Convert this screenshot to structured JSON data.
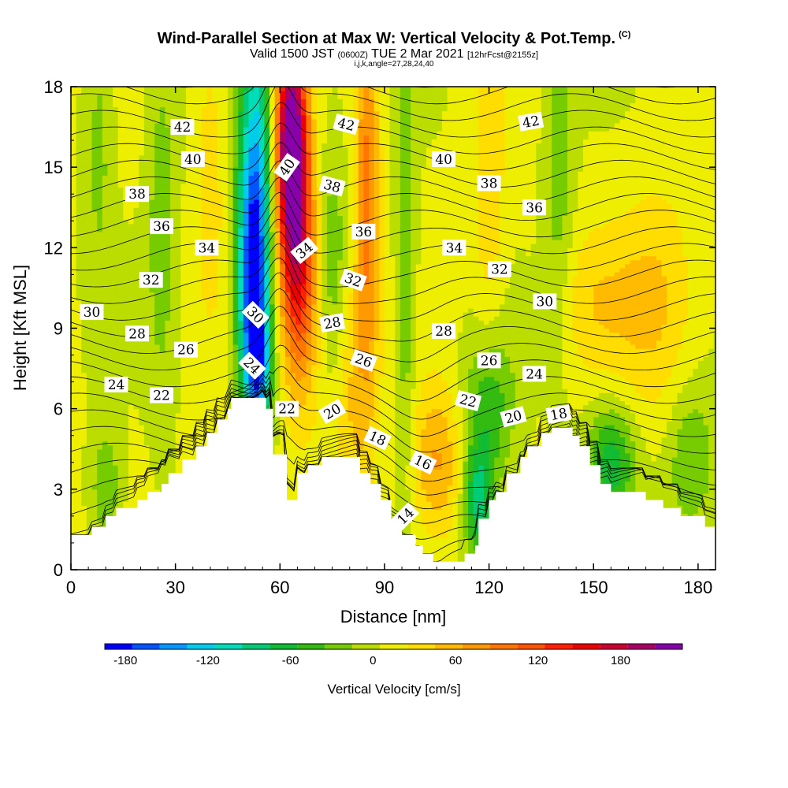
{
  "title": "Wind-Parallel Section at Max W: Vertical Velocity & Pot.Temp.",
  "title_mark": "(C)",
  "subtitle_main": "Valid 1500 JST",
  "subtitle_utc": "(0600Z)",
  "subtitle_date": "TUE 2 Mar 2021",
  "subtitle_fcst": "[12hrFcst@2155z]",
  "params": "i,j,k,angle=27,28,24,40",
  "chart_data": {
    "type": "heatmap",
    "xlabel": "Distance [nm]",
    "ylabel": "Height [Kft MSL]",
    "xlim": [
      0,
      185
    ],
    "ylim": [
      0,
      18
    ],
    "x_ticks": [
      0,
      30,
      60,
      90,
      120,
      150,
      180
    ],
    "y_ticks": [
      0,
      3,
      6,
      9,
      12,
      15,
      18
    ],
    "terrain": [
      [
        0,
        1.3
      ],
      [
        6,
        1.3
      ],
      [
        6,
        1.6
      ],
      [
        10,
        1.6
      ],
      [
        10,
        2.0
      ],
      [
        13,
        2.0
      ],
      [
        13,
        2.3
      ],
      [
        19,
        2.3
      ],
      [
        19,
        2.6
      ],
      [
        22,
        2.6
      ],
      [
        22,
        2.9
      ],
      [
        26,
        2.9
      ],
      [
        26,
        3.2
      ],
      [
        28,
        3.2
      ],
      [
        28,
        3.6
      ],
      [
        32,
        3.6
      ],
      [
        32,
        4.1
      ],
      [
        36,
        4.1
      ],
      [
        36,
        4.6
      ],
      [
        39,
        4.6
      ],
      [
        39,
        5.1
      ],
      [
        42,
        5.1
      ],
      [
        42,
        5.6
      ],
      [
        45,
        5.6
      ],
      [
        45,
        6.0
      ],
      [
        46,
        6.0
      ],
      [
        46,
        6.4
      ],
      [
        56,
        6.4
      ],
      [
        56,
        6.0
      ],
      [
        58,
        6.0
      ],
      [
        58,
        4.3
      ],
      [
        62,
        4.3
      ],
      [
        62,
        2.6
      ],
      [
        65,
        2.6
      ],
      [
        65,
        3.6
      ],
      [
        68,
        3.6
      ],
      [
        68,
        3.9
      ],
      [
        72,
        3.9
      ],
      [
        72,
        4.2
      ],
      [
        83,
        4.2
      ],
      [
        83,
        3.6
      ],
      [
        86,
        3.6
      ],
      [
        86,
        3.2
      ],
      [
        89,
        3.2
      ],
      [
        89,
        2.6
      ],
      [
        92,
        2.6
      ],
      [
        92,
        1.9
      ],
      [
        95,
        1.9
      ],
      [
        95,
        1.3
      ],
      [
        99,
        1.3
      ],
      [
        99,
        0.9
      ],
      [
        101,
        0.9
      ],
      [
        101,
        0.6
      ],
      [
        104,
        0.6
      ],
      [
        104,
        0.3
      ],
      [
        113,
        0.3
      ],
      [
        113,
        0.6
      ],
      [
        116,
        0.6
      ],
      [
        116,
        0.9
      ],
      [
        117,
        0.9
      ],
      [
        117,
        1.9
      ],
      [
        120,
        1.9
      ],
      [
        120,
        2.6
      ],
      [
        122,
        2.6
      ],
      [
        122,
        2.9
      ],
      [
        125,
        2.9
      ],
      [
        125,
        3.6
      ],
      [
        129,
        3.6
      ],
      [
        129,
        4.2
      ],
      [
        131,
        4.2
      ],
      [
        131,
        4.6
      ],
      [
        135,
        4.6
      ],
      [
        135,
        5.1
      ],
      [
        138,
        5.1
      ],
      [
        138,
        5.3
      ],
      [
        144,
        5.3
      ],
      [
        144,
        5.0
      ],
      [
        146,
        5.0
      ],
      [
        146,
        4.6
      ],
      [
        149,
        4.6
      ],
      [
        149,
        3.9
      ],
      [
        152,
        3.9
      ],
      [
        152,
        3.2
      ],
      [
        155,
        3.2
      ],
      [
        155,
        2.9
      ],
      [
        165,
        2.9
      ],
      [
        165,
        2.6
      ],
      [
        170,
        2.6
      ],
      [
        170,
        2.3
      ],
      [
        175,
        2.3
      ],
      [
        175,
        2.0
      ],
      [
        182,
        2.0
      ],
      [
        182,
        1.6
      ],
      [
        185,
        1.6
      ]
    ],
    "vertical_velocity_features": [
      {
        "x": 53,
        "z": 14.0,
        "w": -140,
        "sx": 3.5,
        "sz": 5
      },
      {
        "x": 52,
        "z": 10.0,
        "w": -110,
        "sx": 3,
        "sz": 3
      },
      {
        "x": 54,
        "z": 7.5,
        "w": -90,
        "sx": 2.5,
        "sz": 1.5
      },
      {
        "x": 63,
        "z": 16.5,
        "w": 170,
        "sx": 3,
        "sz": 2.5
      },
      {
        "x": 64,
        "z": 13.5,
        "w": 130,
        "sx": 3.5,
        "sz": 3
      },
      {
        "x": 66,
        "z": 10.0,
        "w": 80,
        "sx": 4,
        "sz": 3
      },
      {
        "x": 85,
        "z": 14.0,
        "w": 85,
        "sx": 2.5,
        "sz": 5
      },
      {
        "x": 80,
        "z": 6.5,
        "w": 40,
        "sx": 5,
        "sz": 3
      },
      {
        "x": 105,
        "z": 4.0,
        "w": 60,
        "sx": 5,
        "sz": 2
      },
      {
        "x": 75,
        "z": 11.0,
        "w": -40,
        "sx": 3,
        "sz": 4
      },
      {
        "x": 96,
        "z": 12.0,
        "w": -45,
        "sx": 2,
        "sz": 6
      },
      {
        "x": 117,
        "z": 2.5,
        "w": -90,
        "sx": 3,
        "sz": 1.5
      },
      {
        "x": 120,
        "z": 6.0,
        "w": -60,
        "sx": 5,
        "sz": 2
      },
      {
        "x": 155,
        "z": 4.0,
        "w": -75,
        "sx": 5,
        "sz": 1.5
      },
      {
        "x": 26,
        "z": 13.0,
        "w": -35,
        "sx": 3,
        "sz": 5
      },
      {
        "x": 8,
        "z": 16.0,
        "w": -30,
        "sx": 3,
        "sz": 4
      },
      {
        "x": 10,
        "z": 3.0,
        "w": -45,
        "sx": 3,
        "sz": 1.5
      },
      {
        "x": 140,
        "z": 15.0,
        "w": -35,
        "sx": 3,
        "sz": 5
      },
      {
        "x": 178,
        "z": 4.0,
        "w": -45,
        "sx": 5,
        "sz": 2
      },
      {
        "x": 120,
        "z": 15.0,
        "w": 35,
        "sx": 3,
        "sz": 5
      },
      {
        "x": 168,
        "z": 10.0,
        "w": 40,
        "sx": 8,
        "sz": 3
      },
      {
        "x": 150,
        "z": 10.0,
        "w": 30,
        "sx": 8,
        "sz": 2
      },
      {
        "x": 40,
        "z": 15.0,
        "w": 30,
        "sx": 3,
        "sz": 4
      }
    ],
    "theta_contours": {
      "levels_from": 14,
      "levels_to": 43,
      "levels_step": 1,
      "labels": [
        {
          "text": "42",
          "x": 32,
          "z": 16.5,
          "angle": 0
        },
        {
          "text": "40",
          "x": 35,
          "z": 15.3,
          "angle": 0
        },
        {
          "text": "38",
          "x": 19,
          "z": 14.0,
          "angle": 0
        },
        {
          "text": "36",
          "x": 26,
          "z": 12.8,
          "angle": 0
        },
        {
          "text": "34",
          "x": 39,
          "z": 12.0,
          "angle": 0
        },
        {
          "text": "32",
          "x": 23,
          "z": 10.8,
          "angle": 0
        },
        {
          "text": "30",
          "x": 6,
          "z": 9.6,
          "angle": 0
        },
        {
          "text": "28",
          "x": 19,
          "z": 8.8,
          "angle": 0
        },
        {
          "text": "26",
          "x": 33,
          "z": 8.2,
          "angle": 0
        },
        {
          "text": "24",
          "x": 13,
          "z": 6.9,
          "angle": 0
        },
        {
          "text": "22",
          "x": 26,
          "z": 6.5,
          "angle": 0
        },
        {
          "text": "30",
          "x": 53,
          "z": 9.5,
          "angle": 45
        },
        {
          "text": "24",
          "x": 52,
          "z": 7.6,
          "angle": 45
        },
        {
          "text": "40",
          "x": 62,
          "z": 15.0,
          "angle": -55
        },
        {
          "text": "34",
          "x": 67,
          "z": 11.9,
          "angle": -40
        },
        {
          "text": "42",
          "x": 79,
          "z": 16.6,
          "angle": 15
        },
        {
          "text": "38",
          "x": 75,
          "z": 14.3,
          "angle": 15
        },
        {
          "text": "36",
          "x": 84,
          "z": 12.6,
          "angle": 0
        },
        {
          "text": "32",
          "x": 81,
          "z": 10.8,
          "angle": 20
        },
        {
          "text": "28",
          "x": 75,
          "z": 9.2,
          "angle": -10
        },
        {
          "text": "26",
          "x": 84,
          "z": 7.8,
          "angle": 20
        },
        {
          "text": "22",
          "x": 62,
          "z": 6.0,
          "angle": 0
        },
        {
          "text": "20",
          "x": 75,
          "z": 5.9,
          "angle": -30
        },
        {
          "text": "18",
          "x": 88,
          "z": 4.9,
          "angle": 25
        },
        {
          "text": "16",
          "x": 101,
          "z": 4.0,
          "angle": 25
        },
        {
          "text": "14",
          "x": 96,
          "z": 2.0,
          "angle": -45
        },
        {
          "text": "40",
          "x": 107,
          "z": 15.3,
          "angle": 0
        },
        {
          "text": "38",
          "x": 120,
          "z": 14.4,
          "angle": 0
        },
        {
          "text": "36",
          "x": 133,
          "z": 13.5,
          "angle": 0
        },
        {
          "text": "34",
          "x": 110,
          "z": 12.0,
          "angle": 0
        },
        {
          "text": "32",
          "x": 123,
          "z": 11.2,
          "angle": 0
        },
        {
          "text": "30",
          "x": 136,
          "z": 10.0,
          "angle": 0
        },
        {
          "text": "28",
          "x": 107,
          "z": 8.9,
          "angle": 0
        },
        {
          "text": "26",
          "x": 120,
          "z": 7.8,
          "angle": 0
        },
        {
          "text": "24",
          "x": 133,
          "z": 7.3,
          "angle": 0
        },
        {
          "text": "22",
          "x": 114,
          "z": 6.3,
          "angle": 15
        },
        {
          "text": "20",
          "x": 127,
          "z": 5.7,
          "angle": -15
        },
        {
          "text": "18",
          "x": 140,
          "z": 5.8,
          "angle": -10
        },
        {
          "text": "42",
          "x": 132,
          "z": 16.7,
          "angle": -10
        }
      ]
    },
    "colorbar": {
      "label": "Vertical Velocity [cm/s]",
      "tick_labels": [
        "-180",
        "-120",
        "-60",
        "0",
        "60",
        "120",
        "180"
      ],
      "tick_values": [
        -180,
        -120,
        -60,
        0,
        60,
        120,
        180
      ],
      "min": -195,
      "max": 225,
      "step": 20,
      "colors": [
        "#0000ff",
        "#0055ff",
        "#0099ff",
        "#00ccee",
        "#00ddbb",
        "#00cc77",
        "#11bb33",
        "#33bb11",
        "#77cc00",
        "#bbdd00",
        "#eeee00",
        "#ffdd00",
        "#ffbb00",
        "#ff9900",
        "#ff7700",
        "#ff5500",
        "#ff2200",
        "#ee0000",
        "#cc0033",
        "#aa0066",
        "#8800aa"
      ]
    }
  }
}
